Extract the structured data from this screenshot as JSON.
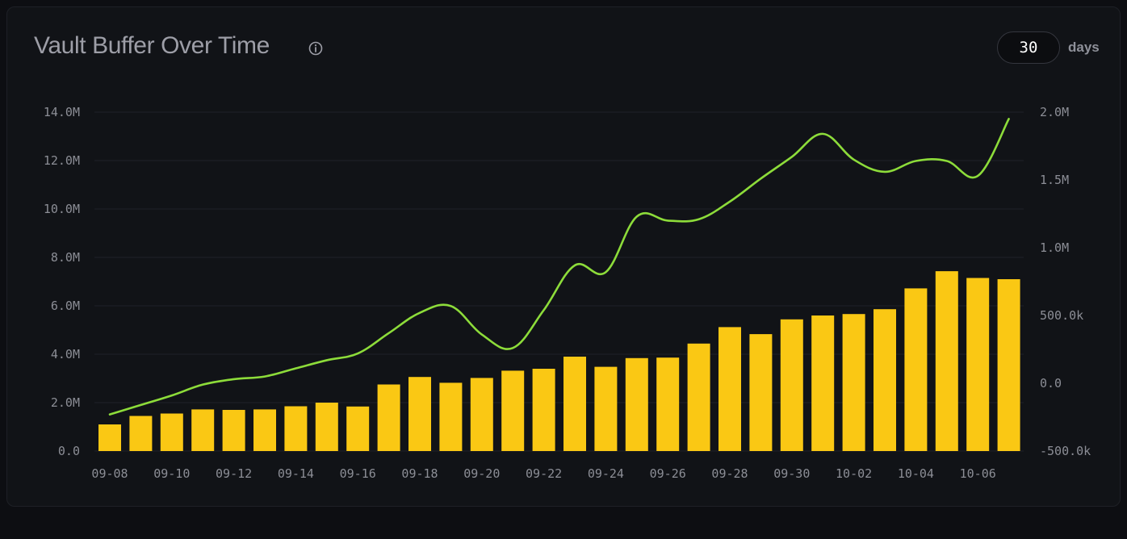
{
  "header": {
    "title": "Vault Buffer Over Time",
    "days_value": "30",
    "days_label": "days"
  },
  "colors": {
    "bar": "#fac814",
    "line": "#8ddc3a",
    "grid": "#1f2128",
    "background": "#111317"
  },
  "icons": {
    "info": "info-circle-icon"
  },
  "chart_data": {
    "type": "bar",
    "title": "Vault Buffer Over Time",
    "xlabel": "",
    "ylabel": "",
    "grid": true,
    "legend": "none",
    "categories": [
      "09-08",
      "09-09",
      "09-10",
      "09-11",
      "09-12",
      "09-13",
      "09-14",
      "09-15",
      "09-16",
      "09-17",
      "09-18",
      "09-19",
      "09-20",
      "09-21",
      "09-22",
      "09-23",
      "09-24",
      "09-25",
      "09-26",
      "09-27",
      "09-28",
      "09-29",
      "09-30",
      "10-01",
      "10-02",
      "10-03",
      "10-04",
      "10-05",
      "10-06",
      "10-07"
    ],
    "x_tick_labels": [
      "09-08",
      "09-10",
      "09-12",
      "09-14",
      "09-16",
      "09-18",
      "09-20",
      "09-22",
      "09-24",
      "09-26",
      "09-28",
      "09-30",
      "10-02",
      "10-04",
      "10-06"
    ],
    "left_axis": {
      "ylim": [
        0,
        14000000
      ],
      "tick_labels": [
        "0.0",
        "2.0M",
        "4.0M",
        "6.0M",
        "8.0M",
        "10.0M",
        "12.0M",
        "14.0M"
      ]
    },
    "right_axis": {
      "ylim": [
        -500000,
        2000000
      ],
      "tick_labels": [
        "-500.0k",
        "0.0",
        "500.0k",
        "1.0M",
        "1.5M",
        "2.0M"
      ]
    },
    "series": [
      {
        "type": "bar",
        "axis": "left",
        "values": [
          1100000,
          1450000,
          1550000,
          1720000,
          1700000,
          1720000,
          1850000,
          2000000,
          1840000,
          2750000,
          3060000,
          2820000,
          3020000,
          3320000,
          3400000,
          3900000,
          3480000,
          3840000,
          3860000,
          4440000,
          5120000,
          4830000,
          5440000,
          5600000,
          5660000,
          5860000,
          6720000,
          7430000,
          7150000,
          7100000
        ]
      },
      {
        "type": "line",
        "axis": "right",
        "values": [
          -230000,
          -160000,
          -90000,
          -10000,
          30000,
          50000,
          110000,
          170000,
          220000,
          370000,
          520000,
          570000,
          360000,
          260000,
          540000,
          870000,
          820000,
          1230000,
          1200000,
          1210000,
          1340000,
          1510000,
          1670000,
          1840000,
          1650000,
          1560000,
          1640000,
          1640000,
          1530000,
          1950000
        ]
      }
    ]
  }
}
